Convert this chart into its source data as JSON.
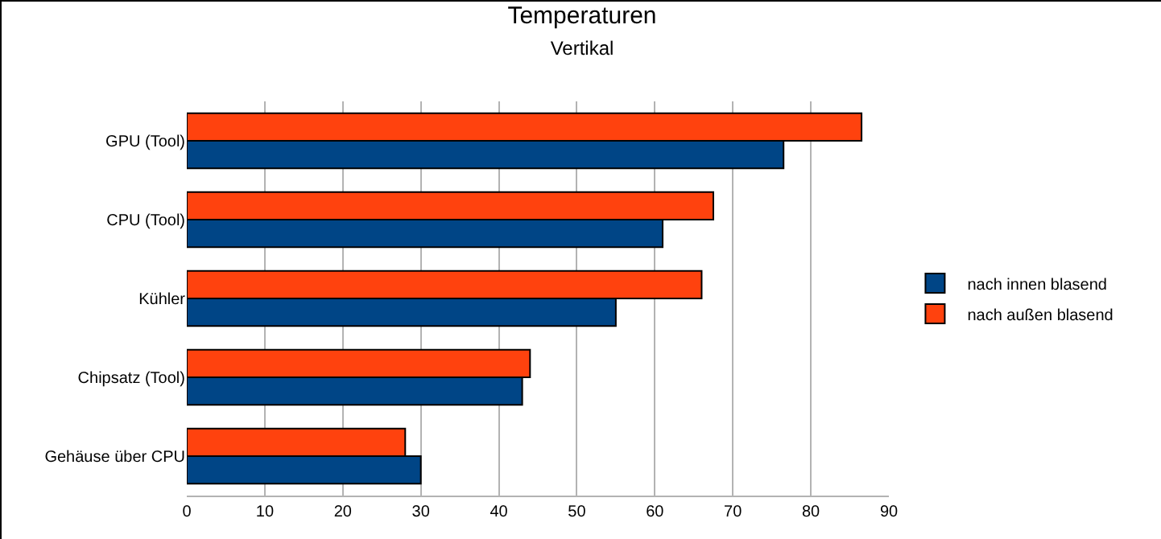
{
  "chart_data": {
    "type": "bar",
    "orientation": "horizontal",
    "title": "Temperaturen",
    "subtitle": "Vertikal",
    "categories": [
      "GPU (Tool)",
      "CPU (Tool)",
      "Kühler",
      "Chipsatz (Tool)",
      "Gehäuse über CPU"
    ],
    "series": [
      {
        "name": "nach innen blasend",
        "color": "#004586",
        "values": [
          76.5,
          61,
          55,
          43,
          30
        ]
      },
      {
        "name": "nach außen blasend",
        "color": "#ff420e",
        "values": [
          86.5,
          67.5,
          66,
          44,
          28
        ]
      }
    ],
    "xlim": [
      0,
      90
    ],
    "xticks": [
      0,
      10,
      20,
      30,
      40,
      50,
      60,
      70,
      80,
      90
    ],
    "grid": "x",
    "legend": "right"
  }
}
